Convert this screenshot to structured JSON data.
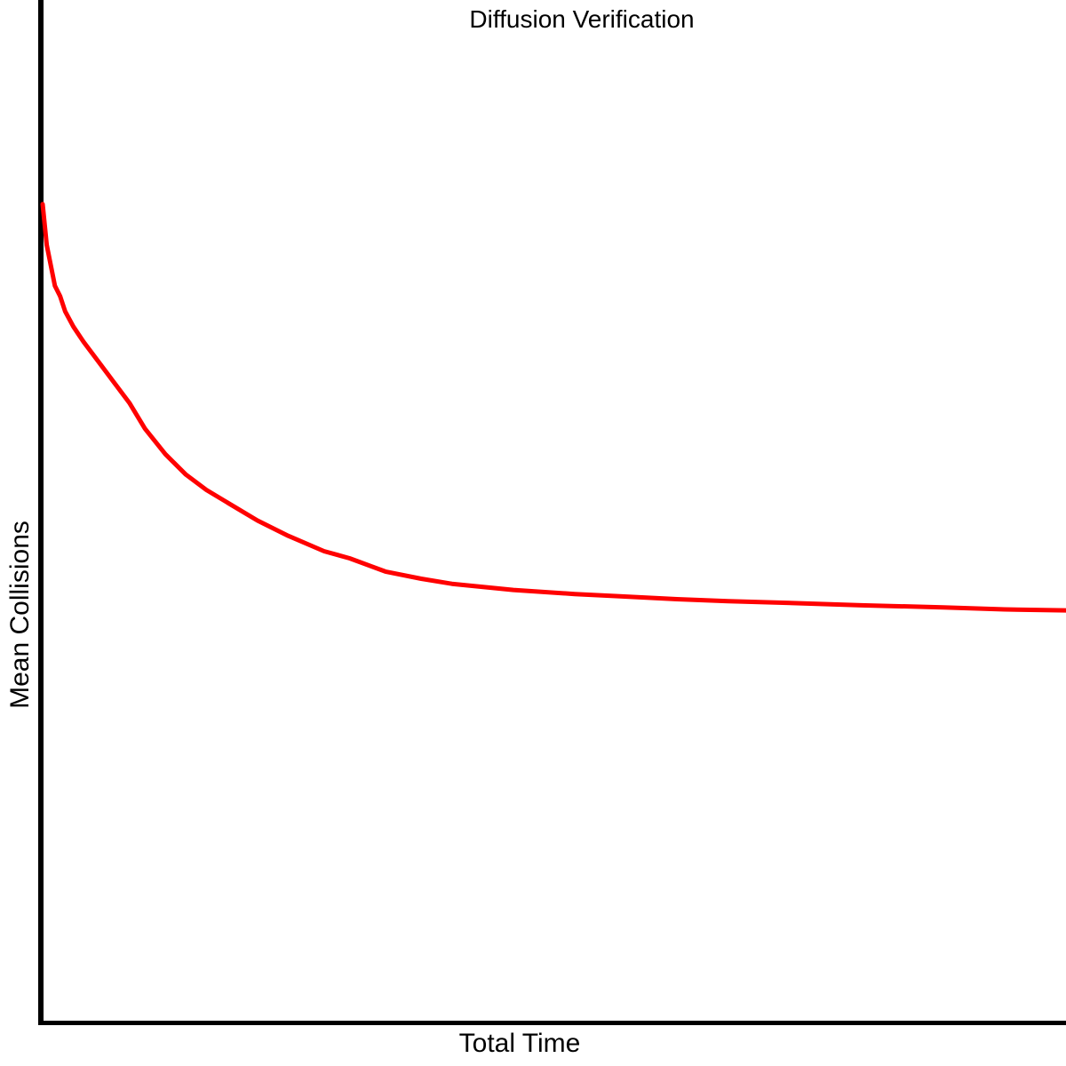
{
  "chart_data": {
    "type": "line",
    "title": "Diffusion Verification",
    "xlabel": "Total Time",
    "ylabel": "Mean Collisions",
    "grid": false,
    "ticks_shown": false,
    "legend": "none",
    "xlim": [
      0,
      100
    ],
    "ylim": [
      0,
      100
    ],
    "series": [
      {
        "color": "#ff0000",
        "x": [
          0,
          0.4,
          0.8,
          1.2,
          1.7,
          2.2,
          3,
          4,
          5.5,
          7,
          8.5,
          10,
          12,
          14,
          16,
          18.5,
          21,
          24,
          27.5,
          30,
          33.5,
          37,
          40,
          46,
          52,
          56,
          62,
          67,
          74,
          80,
          88,
          94,
          100
        ],
        "y": [
          80,
          76,
          74,
          72,
          71,
          69.5,
          68,
          66.5,
          64.5,
          62.5,
          60.5,
          58,
          55.5,
          53.5,
          52,
          50.5,
          49,
          47.5,
          46,
          45.3,
          44,
          43.3,
          42.8,
          42.2,
          41.8,
          41.6,
          41.3,
          41.1,
          40.9,
          40.7,
          40.5,
          40.3,
          40.2
        ]
      }
    ]
  }
}
